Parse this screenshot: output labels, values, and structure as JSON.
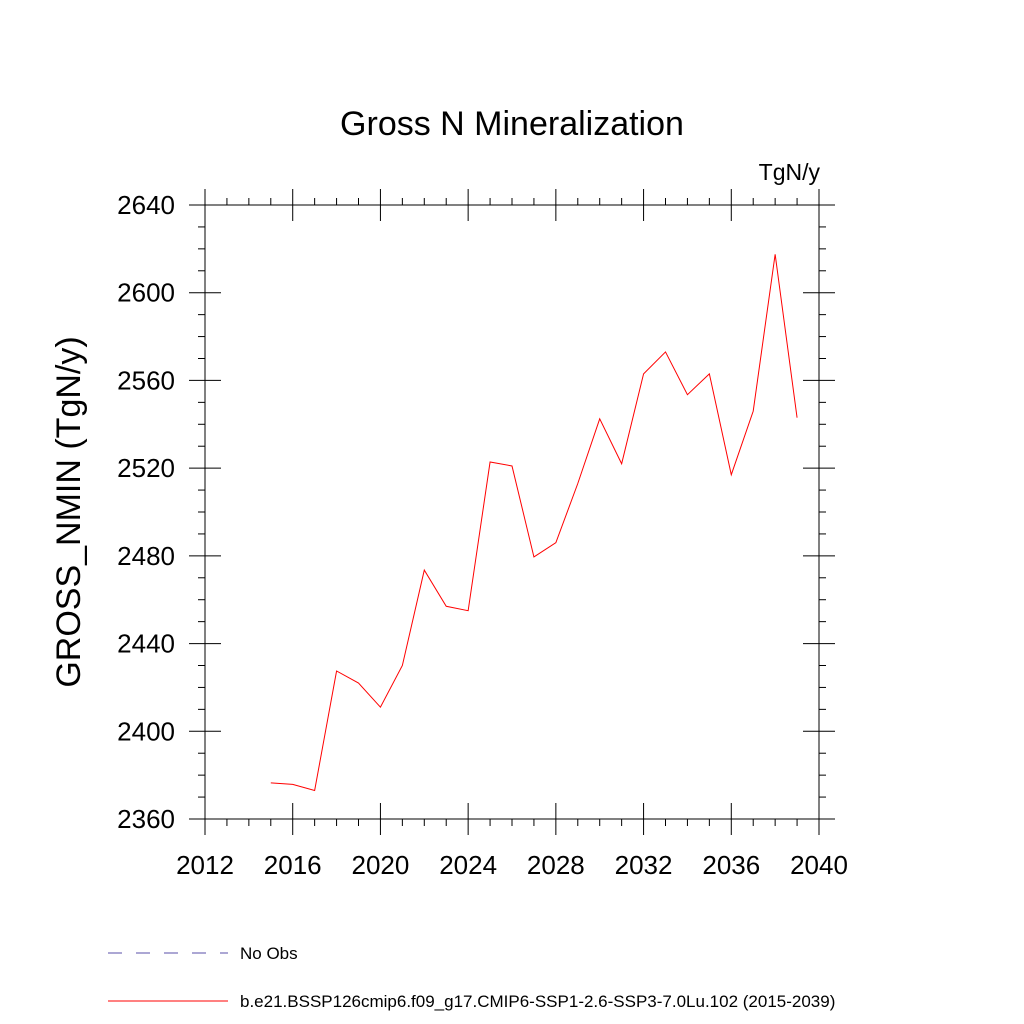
{
  "chart_data": {
    "type": "line",
    "title": "Gross N Mineralization",
    "units_label": "TgN/y",
    "ylabel": "GROSS_NMIN  (TgN/y)",
    "xlabel": "",
    "xlim": [
      2012,
      2040
    ],
    "ylim": [
      2360,
      2640
    ],
    "x_ticks": [
      2012,
      2016,
      2020,
      2024,
      2028,
      2032,
      2036,
      2040
    ],
    "y_ticks": [
      2360,
      2400,
      2440,
      2480,
      2520,
      2560,
      2600,
      2640
    ],
    "x_minor_step": 1,
    "y_minor_step": 10,
    "grid": false,
    "legend_position": "bottom-left",
    "series": [
      {
        "name": "No Obs",
        "color": "#5a4fa8",
        "style": "dashed",
        "x": [],
        "y": []
      },
      {
        "name": "b.e21.BSSP126cmip6.f09_g17.CMIP6-SSP1-2.6-SSP3-7.0Lu.102 (2015-2039)",
        "color": "#ff0000",
        "style": "solid",
        "x": [
          2015,
          2016,
          2017,
          2018,
          2019,
          2020,
          2021,
          2022,
          2023,
          2024,
          2025,
          2026,
          2027,
          2028,
          2029,
          2030,
          2031,
          2032,
          2033,
          2034,
          2035,
          2036,
          2037,
          2038,
          2039
        ],
        "y": [
          2376.5,
          2375.8,
          2373,
          2427.5,
          2422,
          2411,
          2430,
          2473.5,
          2457,
          2455,
          2522.8,
          2521,
          2479.5,
          2486,
          2513,
          2542.5,
          2522,
          2563,
          2573,
          2553.5,
          2563,
          2517,
          2546,
          2617.5,
          2543
        ]
      }
    ]
  }
}
